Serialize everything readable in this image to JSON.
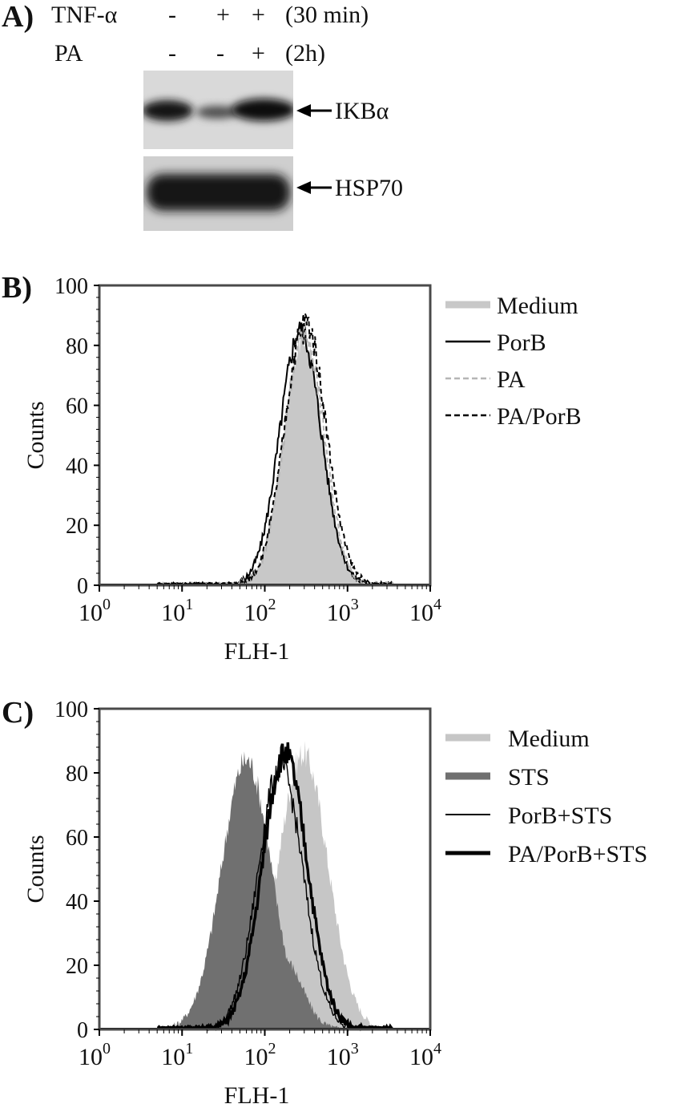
{
  "panels": {
    "a": "A)",
    "b": "B)",
    "c": "C)"
  },
  "blot": {
    "rows": [
      {
        "label": "TNF-α",
        "values": [
          "-",
          "+",
          "+"
        ],
        "note": "(30 min)"
      },
      {
        "label": "PA",
        "values": [
          "-",
          "-",
          "+"
        ],
        "note": "(2h)"
      }
    ],
    "bands": [
      {
        "label": "IKBα",
        "intensity": [
          0.85,
          0.35,
          0.9
        ]
      },
      {
        "label": "HSP70",
        "intensity": [
          1.0,
          1.0,
          1.0
        ]
      }
    ]
  },
  "chart_data": [
    {
      "type": "area",
      "panel": "B)",
      "xlabel": "FLH-1",
      "ylabel": "Counts",
      "xscale": "log",
      "xlim": [
        1,
        10000
      ],
      "ylim": [
        0,
        100
      ],
      "xticks": [
        1,
        10,
        100,
        1000,
        10000
      ],
      "yticks": [
        0,
        20,
        40,
        60,
        80,
        100
      ],
      "legend_position": "right",
      "series": [
        {
          "name": "Medium",
          "style": "fill",
          "color": "#c8c8c8",
          "peak": 290,
          "width": 0.24,
          "height": 82
        },
        {
          "name": "PorB",
          "style": "solid",
          "color": "#000000",
          "peak": 270,
          "width": 0.25,
          "height": 85
        },
        {
          "name": "PA",
          "style": "dashed",
          "color": "#b5b5b5",
          "peak": 300,
          "width": 0.24,
          "height": 84
        },
        {
          "name": "PA/PorB",
          "style": "dashed",
          "color": "#000000",
          "peak": 310,
          "width": 0.25,
          "height": 88
        }
      ]
    },
    {
      "type": "area",
      "panel": "C)",
      "xlabel": "FLH-1",
      "ylabel": "Counts",
      "xscale": "log",
      "xlim": [
        1,
        10000
      ],
      "ylim": [
        0,
        100
      ],
      "xticks": [
        1,
        10,
        100,
        1000,
        10000
      ],
      "yticks": [
        0,
        20,
        40,
        60,
        80,
        100
      ],
      "legend_position": "right",
      "series": [
        {
          "name": "Medium",
          "style": "fill",
          "color": "#c6c6c6",
          "peak": 290,
          "width": 0.3,
          "height": 86
        },
        {
          "name": "STS",
          "style": "fill",
          "color": "#707070",
          "peak": 60,
          "width": 0.3,
          "height": 84,
          "shoulder": 170,
          "shoulder_height": 22
        },
        {
          "name": "PorB+STS",
          "style": "thin",
          "color": "#000000",
          "peak": 155,
          "width": 0.27,
          "height": 82
        },
        {
          "name": "PA/PorB+STS",
          "style": "thick",
          "color": "#000000",
          "peak": 175,
          "width": 0.27,
          "height": 86
        }
      ]
    }
  ]
}
